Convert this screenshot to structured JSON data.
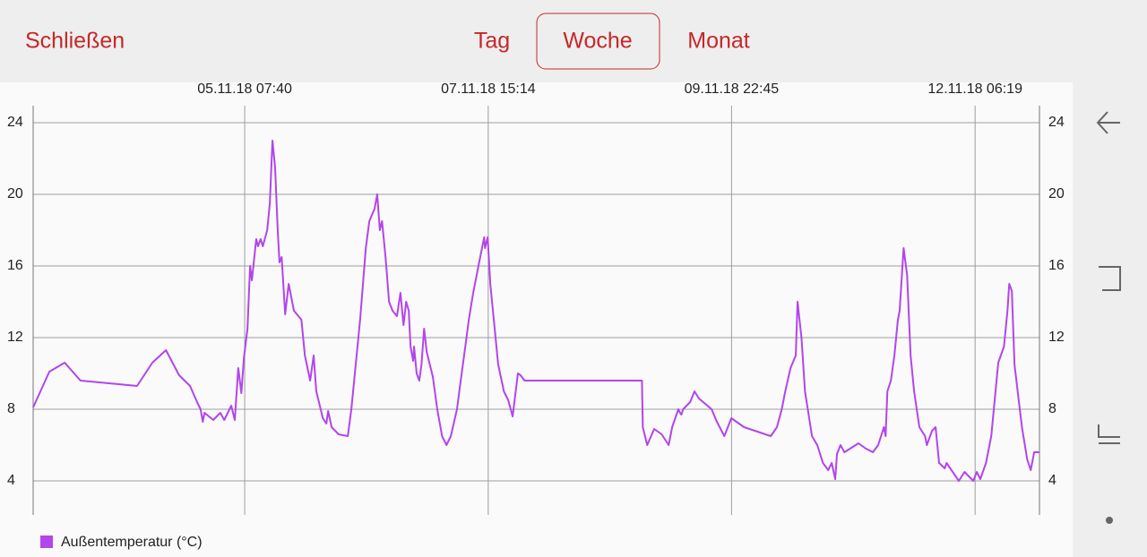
{
  "ui": {
    "close": "Schließen",
    "tabs": [
      "Tag",
      "Woche",
      "Monat"
    ],
    "selected_tab": 1
  },
  "chart_data": {
    "type": "line",
    "xlim": [
      -40.6,
      189.0
    ],
    "xticks": [
      {
        "value": 7.667,
        "label": "05.11.18 07:40"
      },
      {
        "value": 63.233,
        "label": "07.11.18 15:14"
      },
      {
        "value": 118.75,
        "label": "09.11.18 22:45"
      },
      {
        "value": 174.317,
        "label": "12.11.18 06:19"
      }
    ],
    "ylim": [
      2.1,
      24.95
    ],
    "yticks": [
      4,
      8,
      12,
      16,
      20,
      24
    ],
    "grid": true,
    "x": [
      -40.6,
      -36.9,
      -33.4,
      -29.8,
      -16.9,
      -13.4,
      -10.3,
      -7.3,
      -4.8,
      -3.2,
      -2.4,
      -1.9,
      -1.5,
      0.5,
      2.1,
      3.0,
      4.6,
      5.4,
      6.2,
      6.9,
      7.5,
      8.3,
      8.9,
      9.3,
      10.3,
      10.7,
      11.3,
      11.8,
      12.8,
      13.4,
      14.0,
      14.6,
      15.2,
      15.6,
      16.1,
      16.9,
      17.7,
      18.9,
      20.6,
      21.4,
      22.6,
      23.4,
      24.0,
      25.5,
      26.3,
      26.7,
      27.5,
      29.1,
      31.2,
      32.0,
      33.2,
      34.0,
      35.3,
      36.1,
      37.3,
      37.9,
      38.5,
      39.0,
      39.8,
      40.6,
      41.4,
      42.4,
      43.2,
      43.9,
      44.5,
      45.1,
      45.5,
      46.1,
      46.3,
      46.9,
      47.5,
      48.0,
      48.6,
      49.2,
      50.6,
      51.6,
      52.7,
      53.7,
      54.7,
      56.1,
      56.9,
      58.0,
      58.8,
      59.8,
      61.4,
      62.3,
      62.5,
      63.1,
      63.7,
      64.5,
      65.5,
      66.8,
      67.8,
      68.8,
      70.0,
      70.6,
      71.5,
      98.3,
      98.5,
      99.5,
      101.1,
      102.8,
      104.4,
      105.2,
      106.6,
      107.0,
      107.3,
      107.7,
      109.3,
      110.3,
      111.3,
      114.2,
      115.4,
      117.1,
      117.9,
      118.7,
      121.6,
      127.7,
      129.1,
      130.2,
      131.0,
      132.2,
      133.4,
      133.8,
      134.7,
      135.5,
      137.1,
      138.3,
      139.6,
      140.8,
      141.6,
      142.4,
      142.8,
      143.6,
      144.5,
      147.7,
      149.4,
      151.0,
      152.2,
      153.5,
      153.9,
      154.3,
      155.1,
      155.9,
      156.7,
      157.1,
      158.0,
      158.8,
      159.6,
      160.4,
      161.6,
      162.9,
      163.3,
      164.5,
      165.3,
      166.1,
      167.4,
      167.8,
      170.6,
      171.9,
      173.9,
      174.7,
      175.5,
      176.8,
      178.0,
      179.6,
      180.9,
      181.7,
      182.1,
      182.7,
      183.3,
      185.0,
      186.2,
      187.0,
      187.8,
      189.0
    ],
    "series": [
      {
        "name": "Außentemperatur (°C)",
        "color": "#b245ec",
        "values": [
          8.1,
          10.1,
          10.6,
          9.6,
          9.3,
          10.6,
          11.3,
          9.9,
          9.3,
          8.4,
          8.0,
          7.3,
          7.8,
          7.4,
          7.8,
          7.4,
          8.2,
          7.4,
          10.3,
          8.9,
          10.9,
          12.5,
          16.0,
          15.2,
          17.5,
          17.1,
          17.5,
          17.1,
          18.0,
          19.5,
          23.0,
          21.5,
          18.0,
          16.2,
          16.5,
          13.3,
          15.0,
          13.5,
          13.0,
          11.0,
          9.6,
          11.0,
          9.0,
          7.5,
          7.2,
          7.9,
          7.0,
          6.6,
          6.5,
          8.0,
          11.0,
          13.0,
          17.0,
          18.5,
          19.2,
          20.0,
          18.0,
          18.5,
          16.5,
          14.0,
          13.5,
          13.2,
          14.5,
          12.7,
          14.0,
          13.5,
          11.5,
          10.7,
          11.5,
          10.0,
          9.6,
          10.5,
          12.5,
          11.2,
          9.8,
          8.0,
          6.5,
          6.0,
          6.5,
          8.0,
          9.5,
          11.5,
          13.0,
          14.5,
          16.5,
          17.6,
          17.0,
          17.6,
          15.0,
          13.0,
          10.5,
          9.0,
          8.5,
          7.6,
          10.0,
          9.9,
          9.6,
          9.6,
          7.0,
          6.0,
          6.9,
          6.6,
          6.0,
          7.0,
          8.0,
          7.8,
          7.7,
          8.0,
          8.4,
          9.0,
          8.6,
          8.0,
          7.3,
          6.5,
          7.0,
          7.5,
          7.0,
          6.5,
          7.0,
          8.0,
          9.0,
          10.3,
          11.0,
          14.0,
          12.0,
          9.0,
          6.5,
          6.0,
          5.0,
          4.6,
          5.0,
          4.1,
          5.5,
          6.0,
          5.6,
          6.1,
          5.8,
          5.6,
          6.0,
          7.0,
          6.5,
          9.0,
          9.6,
          11.0,
          13.0,
          13.5,
          17.0,
          15.5,
          11.0,
          9.0,
          7.0,
          6.5,
          6.0,
          6.8,
          7.0,
          5.0,
          4.7,
          5.0,
          4.0,
          4.5,
          4.0,
          4.5,
          4.1,
          5.0,
          6.5,
          10.6,
          11.5,
          13.5,
          15.0,
          14.6,
          10.5,
          7.0,
          5.2,
          4.6,
          5.6,
          5.6
        ]
      }
    ]
  }
}
